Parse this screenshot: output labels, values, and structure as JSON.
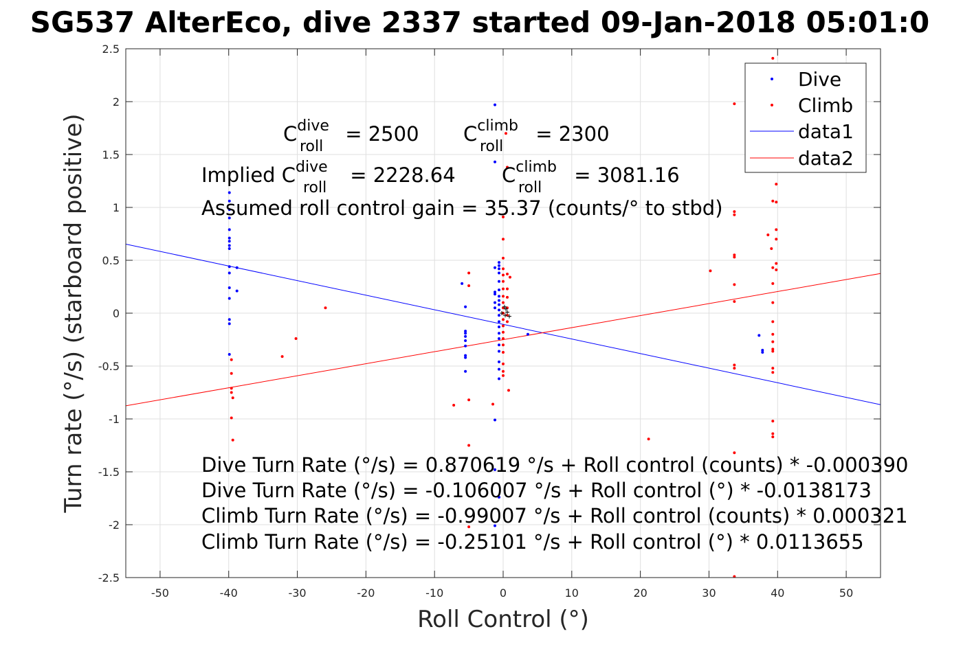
{
  "chart_data": {
    "type": "scatter",
    "title": "SG537 AlterEco, dive 2337 started 09-Jan-2018 05:01:0",
    "xlabel": "Roll Control (°)",
    "ylabel": "Turn rate (°/s) (starboard positive)",
    "xlim": [
      -55,
      55
    ],
    "ylim": [
      -2.5,
      2.5
    ],
    "x_ticks": [
      "-50",
      "-40",
      "-30",
      "-20",
      "-10",
      "0",
      "10",
      "20",
      "30",
      "40",
      "50"
    ],
    "y_ticks": [
      "-2.5",
      "-2",
      "-1.5",
      "-1",
      "-0.5",
      "0",
      "0.5",
      "1",
      "1.5",
      "2",
      "2.5"
    ],
    "grid": true,
    "legend_position": "top-right",
    "colors": {
      "dive": "#0000ff",
      "climb": "#ff0000",
      "axis": "#262626",
      "grid": "#dfdfdf"
    },
    "series": [
      {
        "name": "Dive",
        "style": "dots",
        "color": "#0000ff",
        "points": [
          [
            -39.9,
            1.14
          ],
          [
            -39.9,
            1.06
          ],
          [
            -39.9,
            0.98
          ],
          [
            -39.9,
            0.9
          ],
          [
            -39.9,
            0.79
          ],
          [
            -39.9,
            0.71
          ],
          [
            -39.9,
            0.68
          ],
          [
            -39.9,
            0.64
          ],
          [
            -39.9,
            0.61
          ],
          [
            -39.9,
            0.44
          ],
          [
            -39.9,
            0.38
          ],
          [
            -39.9,
            0.24
          ],
          [
            -39.9,
            0.14
          ],
          [
            -39.9,
            -0.06
          ],
          [
            -39.9,
            -0.1
          ],
          [
            -39.9,
            -0.39
          ],
          [
            -38.8,
            0.43
          ],
          [
            -38.8,
            0.21
          ],
          [
            -6.0,
            0.28
          ],
          [
            -5.5,
            0.06
          ],
          [
            -5.5,
            -0.17
          ],
          [
            -5.5,
            -0.19
          ],
          [
            -5.5,
            -0.22
          ],
          [
            -5.5,
            -0.26
          ],
          [
            -5.5,
            -0.31
          ],
          [
            -5.5,
            -0.4
          ],
          [
            -5.5,
            -0.42
          ],
          [
            -5.5,
            -0.55
          ],
          [
            -1.2,
            1.97
          ],
          [
            -1.2,
            1.43
          ],
          [
            -1.2,
            0.43
          ],
          [
            -1.2,
            0.2
          ],
          [
            -1.2,
            0.18
          ],
          [
            -1.2,
            0.1
          ],
          [
            -1.2,
            0.05
          ],
          [
            -1.2,
            -1.01
          ],
          [
            -1.2,
            -1.48
          ],
          [
            -1.2,
            -2.01
          ],
          [
            -0.6,
            0.48
          ],
          [
            -0.6,
            0.45
          ],
          [
            -0.6,
            0.42
          ],
          [
            -0.6,
            0.38
          ],
          [
            -0.6,
            0.3
          ],
          [
            -0.6,
            0.22
          ],
          [
            -0.6,
            0.16
          ],
          [
            -0.6,
            0.12
          ],
          [
            -0.6,
            0.08
          ],
          [
            -0.6,
            0.03
          ],
          [
            -0.6,
            -0.02
          ],
          [
            -0.6,
            -0.08
          ],
          [
            -0.6,
            -0.13
          ],
          [
            -0.6,
            -0.19
          ],
          [
            -0.6,
            -0.24
          ],
          [
            -0.6,
            -0.3
          ],
          [
            -0.6,
            -0.36
          ],
          [
            -0.6,
            -0.46
          ],
          [
            -0.6,
            -0.53
          ],
          [
            -0.6,
            -0.62
          ],
          [
            -0.6,
            -1.74
          ],
          [
            3.6,
            -0.2
          ],
          [
            37.3,
            -0.21
          ],
          [
            37.8,
            -0.35
          ],
          [
            37.8,
            -0.37
          ]
        ]
      },
      {
        "name": "Climb",
        "style": "dots",
        "color": "#ff0000",
        "points": [
          [
            -39.6,
            -0.44
          ],
          [
            -39.6,
            -0.57
          ],
          [
            -39.6,
            -0.71
          ],
          [
            -39.6,
            -0.75
          ],
          [
            -39.4,
            -0.8
          ],
          [
            -39.6,
            -0.99
          ],
          [
            -39.4,
            -1.2
          ],
          [
            -32.2,
            -0.41
          ],
          [
            -30.2,
            -0.24
          ],
          [
            -25.9,
            0.05
          ],
          [
            -7.2,
            -0.87
          ],
          [
            -5.0,
            0.38
          ],
          [
            -5.0,
            0.26
          ],
          [
            -5.0,
            -0.82
          ],
          [
            -5.0,
            -1.25
          ],
          [
            -5.0,
            -2.02
          ],
          [
            -1.5,
            -0.86
          ],
          [
            0.0,
            0.91
          ],
          [
            0.0,
            0.7
          ],
          [
            0.0,
            0.52
          ],
          [
            0.0,
            0.42
          ],
          [
            0.0,
            0.36
          ],
          [
            0.0,
            0.3
          ],
          [
            0.0,
            0.23
          ],
          [
            0.0,
            0.16
          ],
          [
            0.0,
            0.1
          ],
          [
            0.0,
            0.05
          ],
          [
            0.0,
            0.0
          ],
          [
            0.0,
            -0.06
          ],
          [
            0.0,
            -0.12
          ],
          [
            0.0,
            -0.18
          ],
          [
            0.0,
            -0.24
          ],
          [
            0.0,
            -0.3
          ],
          [
            0.0,
            -0.37
          ],
          [
            0.0,
            -0.48
          ],
          [
            0.0,
            -0.55
          ],
          [
            0.0,
            -0.59
          ],
          [
            0.4,
            1.7
          ],
          [
            0.6,
            1.38
          ],
          [
            0.6,
            0.37
          ],
          [
            0.6,
            0.23
          ],
          [
            0.6,
            0.15
          ],
          [
            0.6,
            0.05
          ],
          [
            0.6,
            -0.02
          ],
          [
            0.6,
            -0.08
          ],
          [
            0.8,
            -0.73
          ],
          [
            1.0,
            0.34
          ],
          [
            21.2,
            -1.19
          ],
          [
            30.2,
            0.4
          ],
          [
            33.7,
            1.98
          ],
          [
            33.7,
            0.96
          ],
          [
            33.7,
            0.93
          ],
          [
            33.7,
            0.55
          ],
          [
            33.7,
            0.53
          ],
          [
            33.7,
            0.27
          ],
          [
            33.7,
            0.11
          ],
          [
            33.7,
            -0.49
          ],
          [
            33.7,
            -0.52
          ],
          [
            33.7,
            -1.32
          ],
          [
            33.7,
            -2.49
          ],
          [
            38.6,
            0.74
          ],
          [
            39.1,
            0.61
          ],
          [
            39.3,
            2.41
          ],
          [
            39.3,
            1.06
          ],
          [
            39.3,
            0.43
          ],
          [
            39.3,
            0.28
          ],
          [
            39.3,
            0.1
          ],
          [
            39.3,
            -0.08
          ],
          [
            39.3,
            -0.2
          ],
          [
            39.3,
            -0.27
          ],
          [
            39.3,
            -0.34
          ],
          [
            39.3,
            -0.36
          ],
          [
            39.3,
            -0.52
          ],
          [
            39.3,
            -0.56
          ],
          [
            39.3,
            -1.02
          ],
          [
            39.3,
            -1.14
          ],
          [
            39.3,
            -1.17
          ],
          [
            39.8,
            1.22
          ],
          [
            39.8,
            1.05
          ],
          [
            39.8,
            0.79
          ],
          [
            39.8,
            0.7
          ],
          [
            39.8,
            0.47
          ],
          [
            39.8,
            0.41
          ]
        ]
      },
      {
        "name": "data1",
        "style": "line",
        "color": "#0000ff",
        "points": [
          [
            -55,
            0.653
          ],
          [
            55,
            -0.865
          ]
        ]
      },
      {
        "name": "data2",
        "style": "line",
        "color": "#ff0000",
        "points": [
          [
            -55,
            -0.876
          ],
          [
            55,
            0.375
          ]
        ]
      }
    ],
    "black_markers": [
      [
        -0.2,
        0.0
      ],
      [
        0.3,
        -0.02
      ],
      [
        0.4,
        0.04
      ],
      [
        0.6,
        0.01
      ],
      [
        0.9,
        -0.03
      ],
      [
        0.2,
        0.06
      ]
    ],
    "annotations": {
      "c_dive_prefix": "C",
      "c_dive_sup": "dive",
      "c_dive_sub": "roll",
      "c_dive_value": " = 2500",
      "c_climb_prefix": "C",
      "c_climb_sup": "climb",
      "c_climb_sub": "roll",
      "c_climb_value": " = 2300",
      "implied_dive_prefix": "Implied C",
      "implied_dive_sup": "dive",
      "implied_dive_sub": "roll",
      "implied_dive_value": " = 2228.64",
      "implied_climb_prefix": "C",
      "implied_climb_sup": "climb",
      "implied_climb_sub": "roll",
      "implied_climb_value": " = 3081.16",
      "gain_text": "Assumed roll control gain = 35.37 (counts/° to stbd)",
      "fit_lines": [
        "Dive Turn Rate (°/s) = 0.870619 °/s + Roll control (counts) * -0.000390",
        "Dive Turn Rate (°/s) = -0.106007 °/s + Roll control (°) * -0.0138173",
        "Climb Turn Rate (°/s) = -0.99007 °/s + Roll control (counts) * 0.000321",
        "Climb Turn Rate (°/s) = -0.25101 °/s + Roll control (°) * 0.0113655"
      ]
    }
  }
}
